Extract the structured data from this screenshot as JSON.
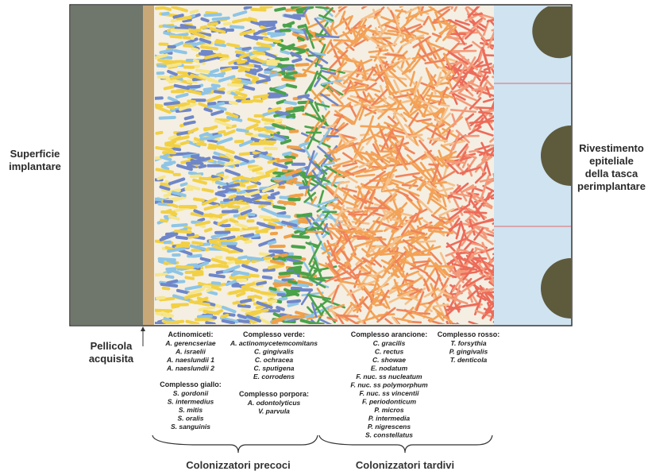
{
  "left_label": [
    "Superficie",
    "implantare"
  ],
  "right_label": [
    "Rivestimento",
    "epiteliale",
    "della tasca",
    "perimplantare"
  ],
  "pellicle_label": [
    "Pellicola",
    "acquisita"
  ],
  "columns": [
    {
      "groups": [
        {
          "title": "Actinomiceti:",
          "species": [
            "A. gerencseriae",
            "A. israelii",
            "A. naeslundii 1",
            "A. naeslundii 2"
          ]
        },
        {
          "title": "Complesso giallo:",
          "species": [
            "S. gordonii",
            "S. intermedius",
            "S. mitis",
            "S. oralis",
            "S. sanguinis"
          ]
        }
      ]
    },
    {
      "groups": [
        {
          "title": "Complesso verde:",
          "species": [
            "A. actinomycetemcomitans",
            "C. gingivalis",
            "C. ochracea",
            "C. sputigena",
            "E. corrodens"
          ]
        },
        {
          "title": "Complesso porpora:",
          "species": [
            "A. odontolyticus",
            "V. parvula"
          ]
        }
      ]
    },
    {
      "groups": [
        {
          "title": "Complesso arancione:",
          "species": [
            "C. gracilis",
            "C. rectus",
            "C. showae",
            "E. nodatum",
            "F. nuc. ss nucleatum",
            "F. nuc. ss polymorphum",
            "F. nuc. ss vincentii",
            "F. periodonticum",
            "P. micros",
            "P. intermedia",
            "P. nigrescens",
            "S. constellatus"
          ]
        }
      ]
    },
    {
      "groups": [
        {
          "title": "Complesso rosso:",
          "species": [
            "T. forsythia",
            "P. gingivalis",
            "T. denticola"
          ]
        }
      ]
    }
  ],
  "braces": [
    "Colonizzatori precoci",
    "Colonizzatori tardivi"
  ]
}
